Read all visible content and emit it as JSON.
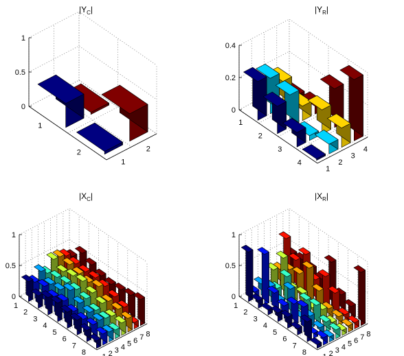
{
  "chart_data": [
    {
      "type": "bar3d",
      "title": "|Y",
      "title_sub": "C",
      "ztick_labels": [
        "0",
        "0.5",
        "1"
      ],
      "zticks": [
        0,
        0.5,
        1
      ],
      "zlim": [
        0,
        1
      ],
      "row_tick_labels": [
        "1",
        "2"
      ],
      "col_tick_labels": [
        "1",
        "2"
      ],
      "grid": true,
      "values": [
        [
          0.35,
          0.03
        ],
        [
          0.04,
          0.4
        ]
      ]
    },
    {
      "type": "bar3d",
      "title": "|Y",
      "title_sub": "R",
      "ztick_labels": [
        "0",
        "0.2",
        "0.4"
      ],
      "zticks": [
        0,
        0.2,
        0.4
      ],
      "zlim": [
        0,
        0.4
      ],
      "row_tick_labels": [
        "1",
        "2",
        "3",
        "4"
      ],
      "col_tick_labels": [
        "1",
        "2",
        "3",
        "4"
      ],
      "grid": true,
      "values": [
        [
          0.24,
          0.22,
          0.16,
          0.03
        ],
        [
          0.17,
          0.2,
          0.09,
          0.05
        ],
        [
          0.09,
          0.03,
          0.15,
          0.24
        ],
        [
          0.01,
          0.06,
          0.12,
          0.38
        ]
      ]
    },
    {
      "type": "bar3d",
      "title": "|X",
      "title_sub": "C",
      "ztick_labels": [
        "0",
        "0.5",
        "1"
      ],
      "zticks": [
        0,
        0.5,
        1
      ],
      "zlim": [
        0,
        1
      ],
      "row_tick_labels": [
        "1",
        "2",
        "3",
        "4",
        "5",
        "6",
        "7",
        "8"
      ],
      "col_tick_labels": [
        "1",
        "2",
        "3",
        "4",
        "5",
        "6",
        "7",
        "8"
      ],
      "grid": true,
      "values": [
        [
          0.32,
          0.26,
          0.38,
          0.3,
          0.47,
          0.46,
          0.42,
          0.36
        ],
        [
          0.2,
          0.3,
          0.28,
          0.34,
          0.38,
          0.44,
          0.4,
          0.52
        ],
        [
          0.28,
          0.24,
          0.3,
          0.36,
          0.42,
          0.4,
          0.38,
          0.44
        ],
        [
          0.3,
          0.28,
          0.4,
          0.36,
          0.44,
          0.37,
          0.39,
          0.37
        ],
        [
          0.26,
          0.22,
          0.3,
          0.32,
          0.36,
          0.41,
          0.36,
          0.34
        ],
        [
          0.24,
          0.2,
          0.26,
          0.24,
          0.3,
          0.28,
          0.3,
          0.36
        ],
        [
          0.18,
          0.22,
          0.24,
          0.22,
          0.2,
          0.26,
          0.24,
          0.38
        ],
        [
          0.12,
          0.18,
          0.16,
          0.14,
          0.2,
          0.22,
          0.1,
          0.42
        ]
      ]
    },
    {
      "type": "bar3d",
      "title": "|X",
      "title_sub": "R",
      "ztick_labels": [
        "0",
        "0.5",
        "1"
      ],
      "zticks": [
        0,
        0.5,
        1
      ],
      "zlim": [
        0,
        1
      ],
      "row_tick_labels": [
        "1",
        "2",
        "3",
        "4",
        "5",
        "6",
        "7",
        "8"
      ],
      "col_tick_labels": [
        "1",
        "2",
        "3",
        "4",
        "5",
        "6",
        "7",
        "8"
      ],
      "grid": true,
      "values": [
        [
          0.8,
          0.1,
          0.18,
          0.12,
          0.3,
          0.26,
          0.7,
          0.4
        ],
        [
          0.12,
          0.82,
          0.24,
          0.16,
          0.6,
          0.36,
          0.46,
          0.42
        ],
        [
          0.08,
          0.3,
          0.12,
          0.46,
          0.22,
          0.4,
          0.66,
          0.38
        ],
        [
          0.14,
          0.2,
          0.42,
          0.1,
          0.24,
          0.6,
          0.36,
          0.32
        ],
        [
          0.18,
          0.34,
          0.08,
          0.3,
          0.12,
          0.34,
          0.52,
          0.7
        ],
        [
          0.1,
          0.4,
          0.2,
          0.32,
          0.2,
          0.16,
          0.36,
          0.28
        ],
        [
          0.32,
          0.08,
          0.12,
          0.16,
          0.1,
          0.14,
          0.12,
          0.2
        ],
        [
          0.06,
          0.12,
          0.08,
          0.14,
          0.08,
          0.1,
          0.1,
          0.86
        ]
      ]
    }
  ]
}
